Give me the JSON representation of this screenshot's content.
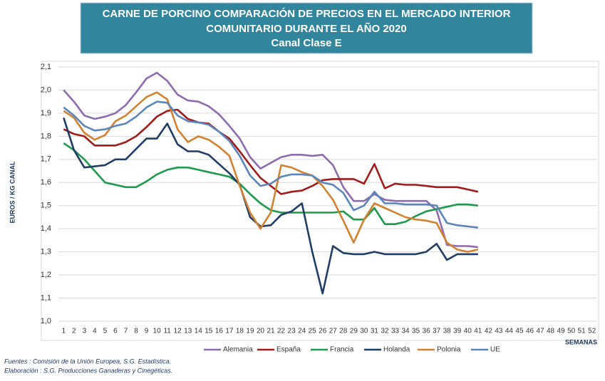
{
  "chart_data": {
    "type": "line",
    "title": [
      "CARNE DE PORCINO COMPARACIÓN DE PRECIOS EN EL MERCADO INTERIOR",
      "COMUNITARIO DURANTE  EL AÑO 2020"
    ],
    "subtitle": "Canal Clase E",
    "y_label": "EUROS / KG CANAL",
    "x_label": "SEMANAS",
    "sources": [
      "Fuentes : Comisión de la Unión Europea, S.G. Estadística.",
      "Elaboración : S.G. Producciones Ganaderas y Cinegéticas."
    ],
    "categories": [
      "1",
      "2",
      "3",
      "4",
      "5",
      "6",
      "7",
      "8",
      "9",
      "10",
      "11",
      "12",
      "13",
      "14",
      "15",
      "16",
      "17",
      "18",
      "19",
      "20",
      "21",
      "22",
      "23",
      "24",
      "25",
      "26",
      "27",
      "28",
      "29",
      "30",
      "31",
      "32",
      "33",
      "34",
      "35",
      "36",
      "37",
      "38",
      "39",
      "40",
      "41",
      "42",
      "43",
      "44",
      "45",
      "46",
      "47",
      "48",
      "49",
      "50",
      "51",
      "52"
    ],
    "ylim": [
      1.0,
      2.1
    ],
    "yticks": [
      {
        "value": 1.0,
        "label": "1,0"
      },
      {
        "value": 1.1,
        "label": "1,1"
      },
      {
        "value": 1.2,
        "label": "1,2"
      },
      {
        "value": 1.3,
        "label": "1,3"
      },
      {
        "value": 1.4,
        "label": "1,4"
      },
      {
        "value": 1.5,
        "label": "1,5"
      },
      {
        "value": 1.6,
        "label": "1,6"
      },
      {
        "value": 1.7,
        "label": "1,7"
      },
      {
        "value": 1.8,
        "label": "1,8"
      },
      {
        "value": 1.9,
        "label": "1,9"
      },
      {
        "value": 2.0,
        "label": "2,0"
      },
      {
        "value": 2.1,
        "label": "2,1"
      }
    ],
    "grid": true,
    "legend": "bottom",
    "series": [
      {
        "name": "Alemania",
        "color": "#8e6bb0",
        "values": [
          2.0,
          1.95,
          1.89,
          1.875,
          1.885,
          1.9,
          1.935,
          1.99,
          2.05,
          2.075,
          2.04,
          1.98,
          1.955,
          1.95,
          1.93,
          1.895,
          1.845,
          1.79,
          1.71,
          1.66,
          1.685,
          1.71,
          1.72,
          1.72,
          1.715,
          1.72,
          1.675,
          1.58,
          1.52,
          1.52,
          1.55,
          1.525,
          1.52,
          1.52,
          1.52,
          1.52,
          1.48,
          1.33,
          1.325,
          1.325,
          1.32,
          null,
          null,
          null,
          null,
          null,
          null,
          null,
          null,
          null,
          null,
          null
        ]
      },
      {
        "name": "España",
        "color": "#a31a1a",
        "values": [
          1.83,
          1.81,
          1.8,
          1.76,
          1.76,
          1.76,
          1.775,
          1.8,
          1.84,
          1.885,
          1.91,
          1.915,
          1.875,
          1.86,
          1.855,
          1.82,
          1.79,
          1.735,
          1.675,
          1.62,
          1.585,
          1.55,
          1.56,
          1.565,
          1.585,
          1.61,
          1.615,
          1.615,
          1.615,
          1.595,
          1.68,
          1.575,
          1.595,
          1.59,
          1.59,
          1.585,
          1.58,
          1.58,
          1.58,
          1.57,
          1.56,
          null,
          null,
          null,
          null,
          null,
          null,
          null,
          null,
          null,
          null,
          null
        ]
      },
      {
        "name": "Francia",
        "color": "#1e9a4c",
        "values": [
          1.77,
          1.74,
          1.7,
          1.65,
          1.6,
          1.59,
          1.58,
          1.58,
          1.605,
          1.635,
          1.655,
          1.665,
          1.665,
          1.655,
          1.645,
          1.635,
          1.625,
          1.595,
          1.55,
          1.51,
          1.48,
          1.47,
          1.47,
          1.47,
          1.47,
          1.47,
          1.47,
          1.475,
          1.44,
          1.44,
          1.49,
          1.42,
          1.42,
          1.43,
          1.455,
          1.475,
          1.485,
          1.495,
          1.505,
          1.505,
          1.5,
          null,
          null,
          null,
          null,
          null,
          null,
          null,
          null,
          null,
          null,
          null
        ]
      },
      {
        "name": "Holanda",
        "color": "#1f3d66",
        "values": [
          1.88,
          1.74,
          1.665,
          1.67,
          1.675,
          1.7,
          1.7,
          1.745,
          1.79,
          1.79,
          1.855,
          1.765,
          1.735,
          1.735,
          1.72,
          1.68,
          1.64,
          1.59,
          1.45,
          1.41,
          1.415,
          1.46,
          1.475,
          1.51,
          1.3,
          1.12,
          1.325,
          1.295,
          1.29,
          1.29,
          1.3,
          1.29,
          1.29,
          1.29,
          1.29,
          1.3,
          1.335,
          1.265,
          1.29,
          1.29,
          1.29,
          null,
          null,
          null,
          null,
          null,
          null,
          null,
          null,
          null,
          null,
          null
        ]
      },
      {
        "name": "Polonia",
        "color": "#d4812f",
        "values": [
          1.91,
          1.88,
          1.815,
          1.785,
          1.805,
          1.865,
          1.89,
          1.93,
          1.97,
          1.99,
          1.96,
          1.83,
          1.775,
          1.8,
          1.785,
          1.755,
          1.715,
          1.585,
          1.47,
          1.4,
          1.47,
          1.675,
          1.665,
          1.645,
          1.63,
          1.585,
          1.525,
          1.435,
          1.34,
          1.44,
          1.51,
          1.49,
          1.47,
          1.45,
          1.44,
          1.435,
          1.425,
          1.34,
          1.31,
          1.3,
          1.31,
          null,
          null,
          null,
          null,
          null,
          null,
          null,
          null,
          null,
          null,
          null
        ]
      },
      {
        "name": "UE",
        "color": "#5b86bd",
        "values": [
          1.925,
          1.89,
          1.845,
          1.825,
          1.83,
          1.845,
          1.855,
          1.885,
          1.925,
          1.95,
          1.945,
          1.89,
          1.865,
          1.86,
          1.85,
          1.82,
          1.78,
          1.715,
          1.63,
          1.585,
          1.595,
          1.625,
          1.635,
          1.635,
          1.63,
          1.6,
          1.59,
          1.555,
          1.48,
          1.5,
          1.56,
          1.51,
          1.51,
          1.505,
          1.505,
          1.505,
          1.5,
          1.425,
          1.415,
          1.41,
          1.405,
          null,
          null,
          null,
          null,
          null,
          null,
          null,
          null,
          null,
          null,
          null
        ]
      }
    ]
  }
}
